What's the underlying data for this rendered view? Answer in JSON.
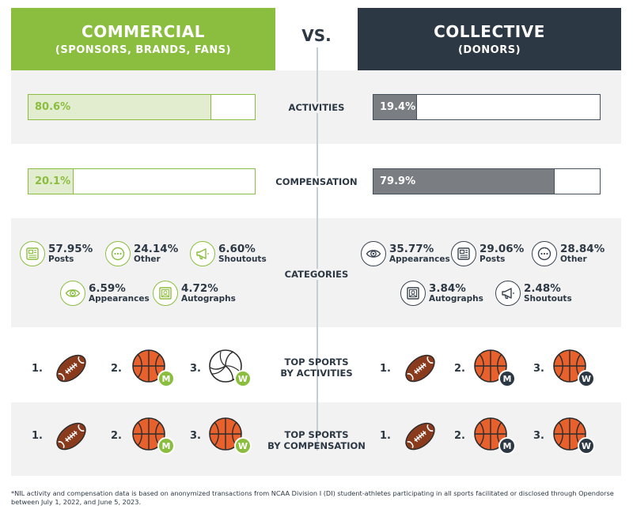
{
  "header": {
    "left_title": "COMMERCIAL",
    "left_sub": "(SPONSORS, BRANDS, FANS)",
    "vs": "VS.",
    "right_title": "COLLECTIVE",
    "right_sub": "(DONORS)"
  },
  "colors": {
    "green": "#8bbe3f",
    "dark": "#2c3844",
    "bar_gray": "#7a7d81",
    "band": "#f2f2f2"
  },
  "activities": {
    "label": "ACTIVITIES",
    "commercial": "80.6%",
    "commercial_value": 80.6,
    "collective": "19.4%",
    "collective_value": 19.4
  },
  "compensation": {
    "label": "COMPENSATION",
    "commercial": "20.1%",
    "commercial_value": 20.1,
    "collective": "79.9%",
    "collective_value": 79.9
  },
  "categories": {
    "label": "CATEGORIES",
    "commercial": [
      {
        "pct": "57.95%",
        "name": "Posts",
        "icon": "posts-icon"
      },
      {
        "pct": "24.14%",
        "name": "Other",
        "icon": "other-icon"
      },
      {
        "pct": "6.60%",
        "name": "Shoutouts",
        "icon": "megaphone-icon"
      },
      {
        "pct": "6.59%",
        "name": "Appearances",
        "icon": "eye-icon"
      },
      {
        "pct": "4.72%",
        "name": "Autographs",
        "icon": "autograph-icon"
      }
    ],
    "collective": [
      {
        "pct": "35.77%",
        "name": "Appearances",
        "icon": "eye-icon"
      },
      {
        "pct": "29.06%",
        "name": "Posts",
        "icon": "posts-icon"
      },
      {
        "pct": "28.84%",
        "name": "Other",
        "icon": "other-icon"
      },
      {
        "pct": "3.84%",
        "name": "Autographs",
        "icon": "autograph-icon"
      },
      {
        "pct": "2.48%",
        "name": "Shoutouts",
        "icon": "megaphone-icon"
      }
    ]
  },
  "top_activities": {
    "label_line1": "TOP SPORTS",
    "label_line2": "BY ACTIVITIES",
    "commercial": [
      {
        "rank": "1.",
        "sport": "football-icon",
        "badge": ""
      },
      {
        "rank": "2.",
        "sport": "basketball-icon",
        "badge": "M"
      },
      {
        "rank": "3.",
        "sport": "volleyball-icon",
        "badge": "W"
      }
    ],
    "collective": [
      {
        "rank": "1.",
        "sport": "football-icon",
        "badge": ""
      },
      {
        "rank": "2.",
        "sport": "basketball-icon",
        "badge": "M"
      },
      {
        "rank": "3.",
        "sport": "basketball-icon",
        "badge": "W"
      }
    ]
  },
  "top_compensation": {
    "label_line1": "TOP SPORTS",
    "label_line2": "BY COMPENSATION",
    "commercial": [
      {
        "rank": "1.",
        "sport": "football-icon",
        "badge": ""
      },
      {
        "rank": "2.",
        "sport": "basketball-icon",
        "badge": "M"
      },
      {
        "rank": "3.",
        "sport": "basketball-icon",
        "badge": "W"
      }
    ],
    "collective": [
      {
        "rank": "1.",
        "sport": "football-icon",
        "badge": ""
      },
      {
        "rank": "2.",
        "sport": "basketball-icon",
        "badge": "M"
      },
      {
        "rank": "3.",
        "sport": "basketball-icon",
        "badge": "W"
      }
    ]
  },
  "footnote": "*NIL activity and compensation data is based on anonymized transactions from NCAA Division I (DI) student-athletes participating in all sports facilitated or disclosed through Opendorse between July 1, 2022, and June 5, 2023."
}
